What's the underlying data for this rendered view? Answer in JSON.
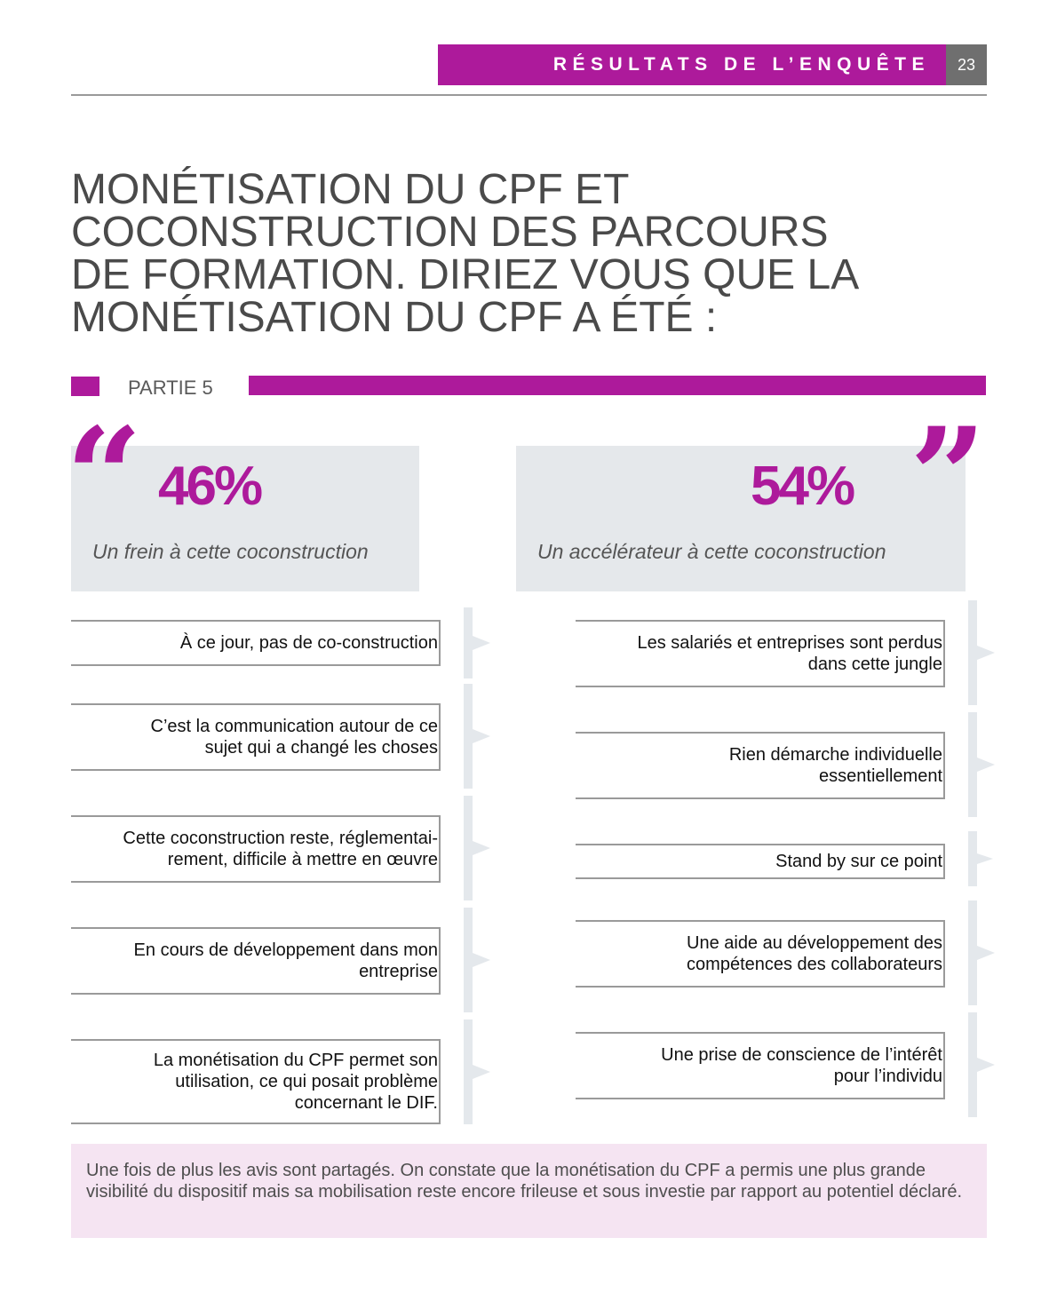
{
  "header": {
    "section_title": "RÉSULTATS DE L’ENQUÊTE",
    "page_number": "23"
  },
  "title": "MONÉTISATION DU CPF ET\nCOCONSTRUCTION DES PARCOURS\nDE FORMATION. DIRIEZ VOUS QUE LA\nMONÉTISATION DU CPF A ÉTÉ :",
  "part": {
    "label": "PARTIE 5"
  },
  "left": {
    "percent": "46%",
    "caption": "Un frein à cette coconstruction",
    "answers": [
      "À ce jour, pas de co-construction",
      "C’est la communication autour de ce\nsujet qui a changé les choses",
      "Cette coconstruction reste, réglementai-\nrement, difficile à mettre en œuvre",
      "En cours de développement dans mon\nentreprise",
      "La monétisation du CPF permet son\nutilisation, ce qui posait problème\nconcernant le DIF."
    ]
  },
  "right": {
    "percent": "54%",
    "caption": "Un accélérateur à cette coconstruction",
    "answers": [
      "Les salariés et entreprises sont perdus\ndans cette jungle",
      "Rien démarche individuelle\nessentiellement",
      "Stand by sur ce point",
      "Une aide au développement des\ncompétences des collaborateurs",
      "Une prise de conscience de l’intérêt\npour l’individu"
    ]
  },
  "note": "Une fois de plus les avis sont partagés. On constate que la monétisation du CPF a permis une plus grande visibilité du dispositif mais sa mobilisation reste encore frileuse et sous investie par rapport au potentiel déclaré.",
  "colors": {
    "accent": "#ad1a9b",
    "box_grey": "#e5e8eb",
    "note_bg": "#f5e4f2",
    "page_num_bg": "#6f6f6f"
  },
  "icons": {
    "open_quote": "quote-open-icon",
    "close_quote": "quote-close-icon",
    "connector": "chevron-right-icon"
  }
}
